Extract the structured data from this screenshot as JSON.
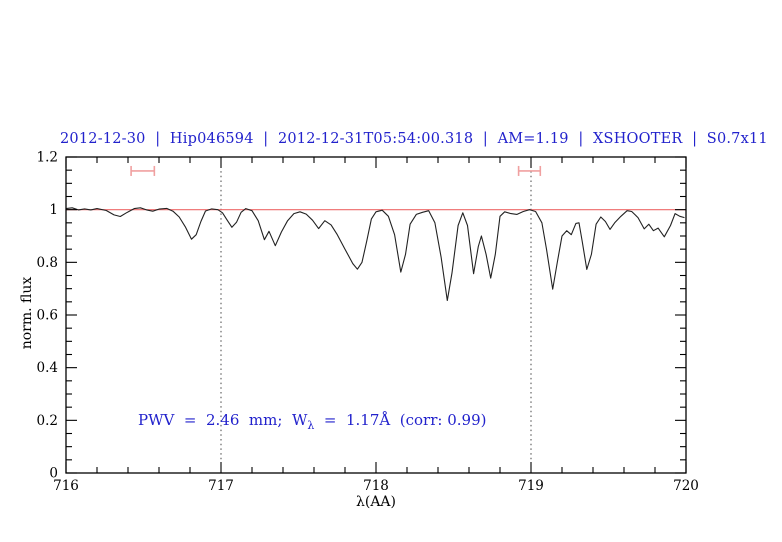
{
  "annotation": {
    "prefix": "PWV  =  2.46  mm;  W",
    "sub": "λ",
    "suffix": "  =  1.17Å  (corr: 0.99)"
  },
  "axes": {
    "x_ticks": [
      {
        "value": 716,
        "label": "716"
      },
      {
        "value": 717,
        "label": "717"
      },
      {
        "value": 718,
        "label": "718"
      },
      {
        "value": 719,
        "label": "719"
      },
      {
        "value": 720,
        "label": "720"
      }
    ],
    "y_ticks": [
      {
        "value": 0,
        "label": "0"
      },
      {
        "value": 0.2,
        "label": "0.2"
      },
      {
        "value": 0.4,
        "label": "0.4"
      },
      {
        "value": 0.6,
        "label": "0.6"
      },
      {
        "value": 0.8,
        "label": "0.8"
      },
      {
        "value": 1,
        "label": "1"
      },
      {
        "value": 1.2,
        "label": "1.2"
      }
    ],
    "x_minor_step": 0.2,
    "y_minor_step": 0.05
  },
  "colors": {
    "title_text": "#2222cc",
    "annotation_text": "#2222cc",
    "spectrum": "#222222",
    "continuum": "#ee6a6a",
    "range_marker": "#f0a0a0",
    "vline": "#444444",
    "axis": "#000000"
  },
  "chart_data": {
    "type": "line",
    "title": "2012-12-30  |  Hip046594  |  2012-12-31T05:54:00.318  |  AM=1.19  |  XSHOOTER  |  S0.7x11",
    "xlabel": "λ(AA)",
    "ylabel": "norm. flux",
    "xlim": [
      716,
      720
    ],
    "ylim": [
      0,
      1.2
    ],
    "grid": false,
    "legend": false,
    "vlines": [
      {
        "x": 717,
        "style": "dotted"
      },
      {
        "x": 719,
        "style": "dotted"
      }
    ],
    "range_markers": [
      {
        "x_from": 716.42,
        "x_to": 716.57,
        "y": 1.147
      },
      {
        "x_from": 718.92,
        "x_to": 719.06,
        "y": 1.147
      }
    ],
    "series": [
      {
        "name": "continuum-fit",
        "color": "#ee6a6a",
        "points": [
          [
            716.0,
            1.0
          ],
          [
            720.0,
            1.0
          ]
        ]
      },
      {
        "name": "observed-spectrum",
        "color": "#222222",
        "points": [
          [
            716.0,
            1.004
          ],
          [
            716.04,
            1.007
          ],
          [
            716.08,
            0.999
          ],
          [
            716.12,
            1.003
          ],
          [
            716.16,
            0.999
          ],
          [
            716.2,
            1.004
          ],
          [
            716.26,
            0.997
          ],
          [
            716.31,
            0.98
          ],
          [
            716.35,
            0.974
          ],
          [
            716.39,
            0.988
          ],
          [
            716.44,
            1.004
          ],
          [
            716.48,
            1.007
          ],
          [
            716.52,
            0.999
          ],
          [
            716.56,
            0.994
          ],
          [
            716.6,
            1.002
          ],
          [
            716.65,
            1.005
          ],
          [
            716.69,
            0.994
          ],
          [
            716.73,
            0.972
          ],
          [
            716.77,
            0.935
          ],
          [
            716.81,
            0.888
          ],
          [
            716.84,
            0.905
          ],
          [
            716.87,
            0.955
          ],
          [
            716.9,
            0.995
          ],
          [
            716.94,
            1.003
          ],
          [
            716.98,
            1.0
          ],
          [
            717.01,
            0.988
          ],
          [
            717.04,
            0.96
          ],
          [
            717.07,
            0.933
          ],
          [
            717.1,
            0.952
          ],
          [
            717.13,
            0.99
          ],
          [
            717.16,
            1.004
          ],
          [
            717.2,
            0.996
          ],
          [
            717.24,
            0.958
          ],
          [
            717.28,
            0.886
          ],
          [
            717.31,
            0.918
          ],
          [
            717.35,
            0.863
          ],
          [
            717.39,
            0.915
          ],
          [
            717.43,
            0.958
          ],
          [
            717.47,
            0.985
          ],
          [
            717.51,
            0.992
          ],
          [
            717.55,
            0.983
          ],
          [
            717.59,
            0.96
          ],
          [
            717.63,
            0.928
          ],
          [
            717.67,
            0.958
          ],
          [
            717.71,
            0.942
          ],
          [
            717.75,
            0.905
          ],
          [
            717.8,
            0.85
          ],
          [
            717.85,
            0.795
          ],
          [
            717.88,
            0.774
          ],
          [
            717.91,
            0.8
          ],
          [
            717.94,
            0.88
          ],
          [
            717.97,
            0.965
          ],
          [
            718.0,
            0.992
          ],
          [
            718.04,
            0.998
          ],
          [
            718.08,
            0.975
          ],
          [
            718.12,
            0.905
          ],
          [
            718.16,
            0.763
          ],
          [
            718.19,
            0.83
          ],
          [
            718.22,
            0.945
          ],
          [
            718.26,
            0.982
          ],
          [
            718.3,
            0.99
          ],
          [
            718.34,
            0.996
          ],
          [
            718.38,
            0.95
          ],
          [
            718.42,
            0.82
          ],
          [
            718.46,
            0.655
          ],
          [
            718.49,
            0.76
          ],
          [
            718.53,
            0.94
          ],
          [
            718.56,
            0.988
          ],
          [
            718.59,
            0.94
          ],
          [
            718.63,
            0.757
          ],
          [
            718.66,
            0.86
          ],
          [
            718.68,
            0.9
          ],
          [
            718.71,
            0.83
          ],
          [
            718.74,
            0.74
          ],
          [
            718.77,
            0.83
          ],
          [
            718.8,
            0.975
          ],
          [
            718.83,
            0.992
          ],
          [
            718.87,
            0.985
          ],
          [
            718.91,
            0.982
          ],
          [
            718.95,
            0.993
          ],
          [
            718.99,
            1.0
          ],
          [
            719.03,
            0.993
          ],
          [
            719.07,
            0.95
          ],
          [
            719.1,
            0.85
          ],
          [
            719.14,
            0.698
          ],
          [
            719.17,
            0.8
          ],
          [
            719.2,
            0.9
          ],
          [
            719.23,
            0.92
          ],
          [
            719.26,
            0.905
          ],
          [
            719.29,
            0.948
          ],
          [
            719.31,
            0.95
          ],
          [
            719.33,
            0.88
          ],
          [
            719.36,
            0.773
          ],
          [
            719.39,
            0.83
          ],
          [
            719.42,
            0.945
          ],
          [
            719.45,
            0.972
          ],
          [
            719.48,
            0.955
          ],
          [
            719.51,
            0.925
          ],
          [
            719.54,
            0.95
          ],
          [
            719.58,
            0.975
          ],
          [
            719.62,
            0.996
          ],
          [
            719.65,
            0.993
          ],
          [
            719.69,
            0.97
          ],
          [
            719.73,
            0.927
          ],
          [
            719.76,
            0.945
          ],
          [
            719.79,
            0.92
          ],
          [
            719.82,
            0.93
          ],
          [
            719.86,
            0.897
          ],
          [
            719.9,
            0.94
          ],
          [
            719.93,
            0.985
          ],
          [
            719.96,
            0.975
          ],
          [
            719.99,
            0.97
          ]
        ]
      }
    ]
  }
}
